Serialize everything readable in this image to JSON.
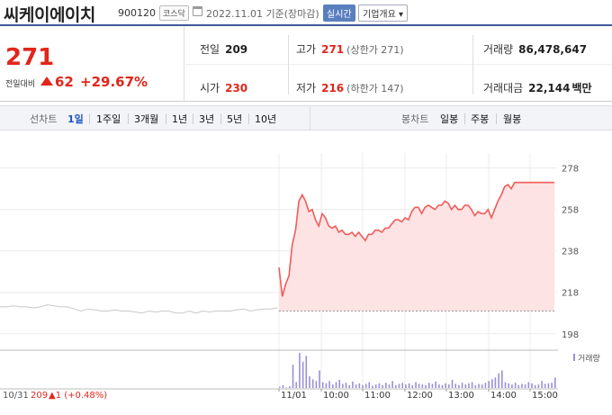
{
  "header": {
    "name": "씨케이에이치",
    "code": "900120",
    "market": "코스닥",
    "date": "2022.11.01 기준(장마감)",
    "realtime": "실시간",
    "company_info": "기업개요 ▾"
  },
  "summary": {
    "price": "271",
    "change_label": "전일대비",
    "change": "62",
    "change_pct": "+29.67%",
    "prev_close_label": "전일",
    "prev_close": "209",
    "open_label": "시가",
    "open": "230",
    "high_label": "고가",
    "high": "271",
    "upper_limit": "(상한가 271)",
    "low_label": "저가",
    "low": "216",
    "lower_limit": "(하한가 147)",
    "volume_label": "거래량",
    "volume": "86,478,647",
    "amount_label": "거래대금",
    "amount": "22,144",
    "amount_unit": "백만"
  },
  "tabs": {
    "line_label": "선차트",
    "line_items": [
      "1일",
      "1주일",
      "3개월",
      "1년",
      "3년",
      "5년",
      "10년"
    ],
    "selected": "1일",
    "candle_label": "봉차트",
    "candle_items": [
      "일봉",
      "주봉",
      "월봉"
    ]
  },
  "chart_data": {
    "type": "line",
    "y_ticks": [
      "278",
      "258",
      "238",
      "218",
      "198"
    ],
    "ylim": [
      194,
      280
    ],
    "x_ticks": [
      "11/01",
      "10:00",
      "11:00",
      "12:00",
      "13:00",
      "14:00",
      "15:00"
    ],
    "prev_day_label": "10/31",
    "prev_day_value": "209",
    "prev_day_change": "▲1 (+0.48%)",
    "volume_legend": "거래량",
    "reference_price": 209,
    "prev_day_series": [
      211,
      211,
      211.5,
      211,
      211,
      210.5,
      211,
      212,
      211.5,
      211,
      211,
      210,
      209,
      210,
      209.5,
      209,
      209,
      209.5,
      209,
      209,
      208.5,
      208,
      209,
      208.5,
      209,
      209,
      208,
      208,
      209,
      208,
      209,
      208.5,
      209,
      209,
      209,
      209.5,
      210,
      209,
      209.5,
      210,
      210,
      210.5
    ],
    "today_series": [
      230,
      216,
      222,
      226,
      241,
      248,
      262,
      265,
      262,
      257,
      258,
      253,
      250,
      256,
      254,
      250,
      249,
      250,
      247,
      248,
      246,
      246,
      247,
      245,
      247,
      245,
      243,
      246,
      246,
      248,
      248,
      247,
      249,
      249,
      251,
      253,
      253,
      252,
      254,
      253,
      257,
      259,
      259,
      256,
      259,
      260,
      259,
      258,
      260,
      260,
      262,
      261,
      258,
      260,
      258,
      258,
      260,
      260,
      258,
      255,
      257,
      256,
      256,
      258,
      254,
      258,
      262,
      265,
      269,
      270,
      268,
      271,
      271,
      271,
      271,
      271,
      271,
      271,
      271,
      271,
      271,
      271,
      271,
      271
    ],
    "volumes": [
      2,
      5,
      1,
      3,
      40,
      10,
      60,
      45,
      55,
      20,
      15,
      12,
      30,
      10,
      8,
      12,
      6,
      10,
      14,
      7,
      9,
      5,
      11,
      6,
      8,
      5,
      7,
      10,
      4,
      6,
      8,
      5,
      9,
      6,
      12,
      5,
      7,
      9,
      6,
      8,
      5,
      10,
      7,
      6,
      5,
      9,
      7,
      11,
      6,
      5,
      8,
      6,
      14,
      7,
      5,
      9,
      6,
      8,
      10,
      5,
      7,
      6,
      9,
      12,
      15,
      18,
      25,
      30,
      10,
      8,
      6,
      9,
      5,
      7,
      6,
      10,
      8,
      5,
      6,
      12,
      7,
      8,
      9,
      18
    ]
  }
}
